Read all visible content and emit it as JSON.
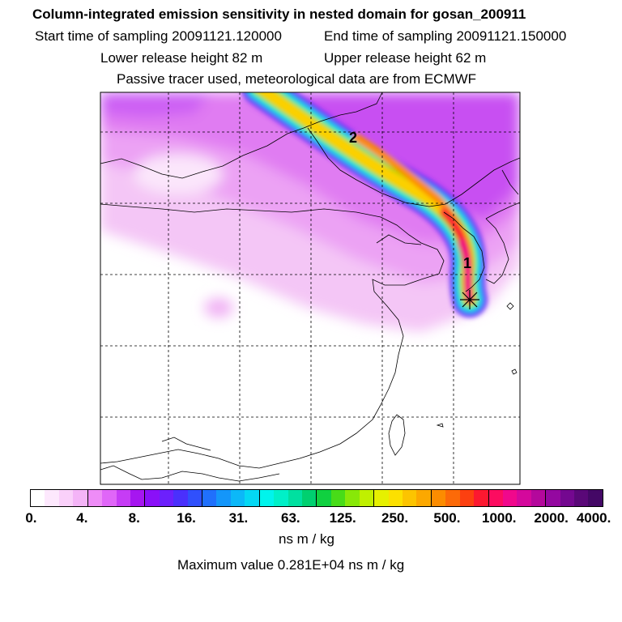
{
  "header": {
    "title": "Column-integrated emission sensitivity in nested domain for gosan_200911",
    "start_label": "Start time of sampling 20091121.120000",
    "end_label": "End time of sampling 20091121.150000",
    "lower_label": "Lower release height   82 m",
    "upper_label": "Upper release height   62 m",
    "tracer_note": "Passive tracer used, meteorological data are from ECMWF"
  },
  "map": {
    "markers": [
      {
        "label": "1"
      },
      {
        "label": "2"
      }
    ],
    "release_marker": "asterisk-icon"
  },
  "colorbar": {
    "ticks": [
      "0.",
      "4.",
      "8.",
      "16.",
      "31.",
      "63.",
      "125.",
      "250.",
      "500.",
      "1000.",
      "2000.",
      "4000."
    ],
    "colors": [
      "#ffffff",
      "#fde8fd",
      "#fad0fa",
      "#f4b4f7",
      "#ee8cf7",
      "#e066f8",
      "#c63cf5",
      "#a616f0",
      "#8a10f8",
      "#6c20fc",
      "#4a30fc",
      "#3050fc",
      "#2070fc",
      "#1496fa",
      "#0cb8f8",
      "#04d8f4",
      "#00f4ec",
      "#00f0c8",
      "#00e0a0",
      "#00d070",
      "#10d040",
      "#48dc18",
      "#88e808",
      "#c0f000",
      "#e6f000",
      "#fce000",
      "#fcc400",
      "#fca800",
      "#fc8c00",
      "#fc6a08",
      "#fc4010",
      "#fc1830",
      "#fc0c60",
      "#f0088c",
      "#d4089c",
      "#b4089c",
      "#9408a0",
      "#740890",
      "#5a0878",
      "#440866"
    ],
    "unit_label": "ns m / kg",
    "max_label": "Maximum value  0.281E+04 ns m / kg"
  }
}
